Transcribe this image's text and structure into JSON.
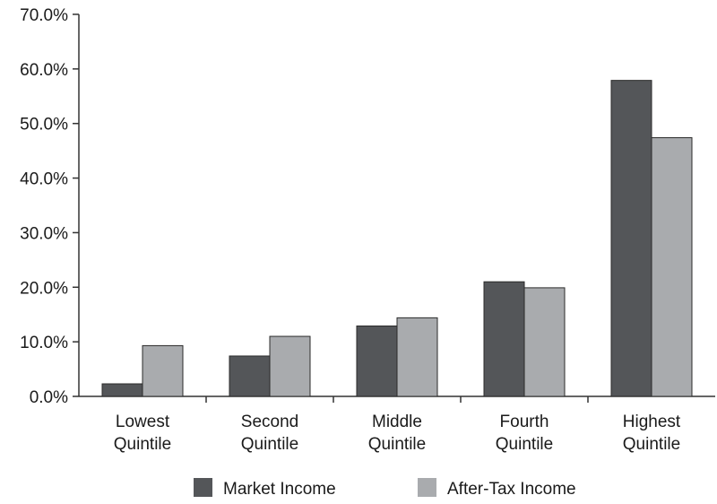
{
  "chart_data": {
    "type": "bar",
    "categories": [
      [
        "Lowest",
        "Quintile"
      ],
      [
        "Second",
        "Quintile"
      ],
      [
        "Middle",
        "Quintile"
      ],
      [
        "Fourth",
        "Quintile"
      ],
      [
        "Highest",
        "Quintile"
      ]
    ],
    "series": [
      {
        "name": "Market Income",
        "color": "#545659",
        "values": [
          2.3,
          7.4,
          12.9,
          21.0,
          57.9
        ]
      },
      {
        "name": "After-Tax Income",
        "color": "#a9abae",
        "values": [
          9.3,
          11.0,
          14.4,
          19.9,
          47.4
        ]
      }
    ],
    "yticks": [
      "0.0%",
      "10.0%",
      "20.0%",
      "30.0%",
      "40.0%",
      "50.0%",
      "60.0%",
      "70.0%"
    ],
    "ylim": [
      0,
      70
    ],
    "title": "",
    "xlabel": "",
    "ylabel": "",
    "grid": false,
    "legend_position": "bottom-center"
  }
}
